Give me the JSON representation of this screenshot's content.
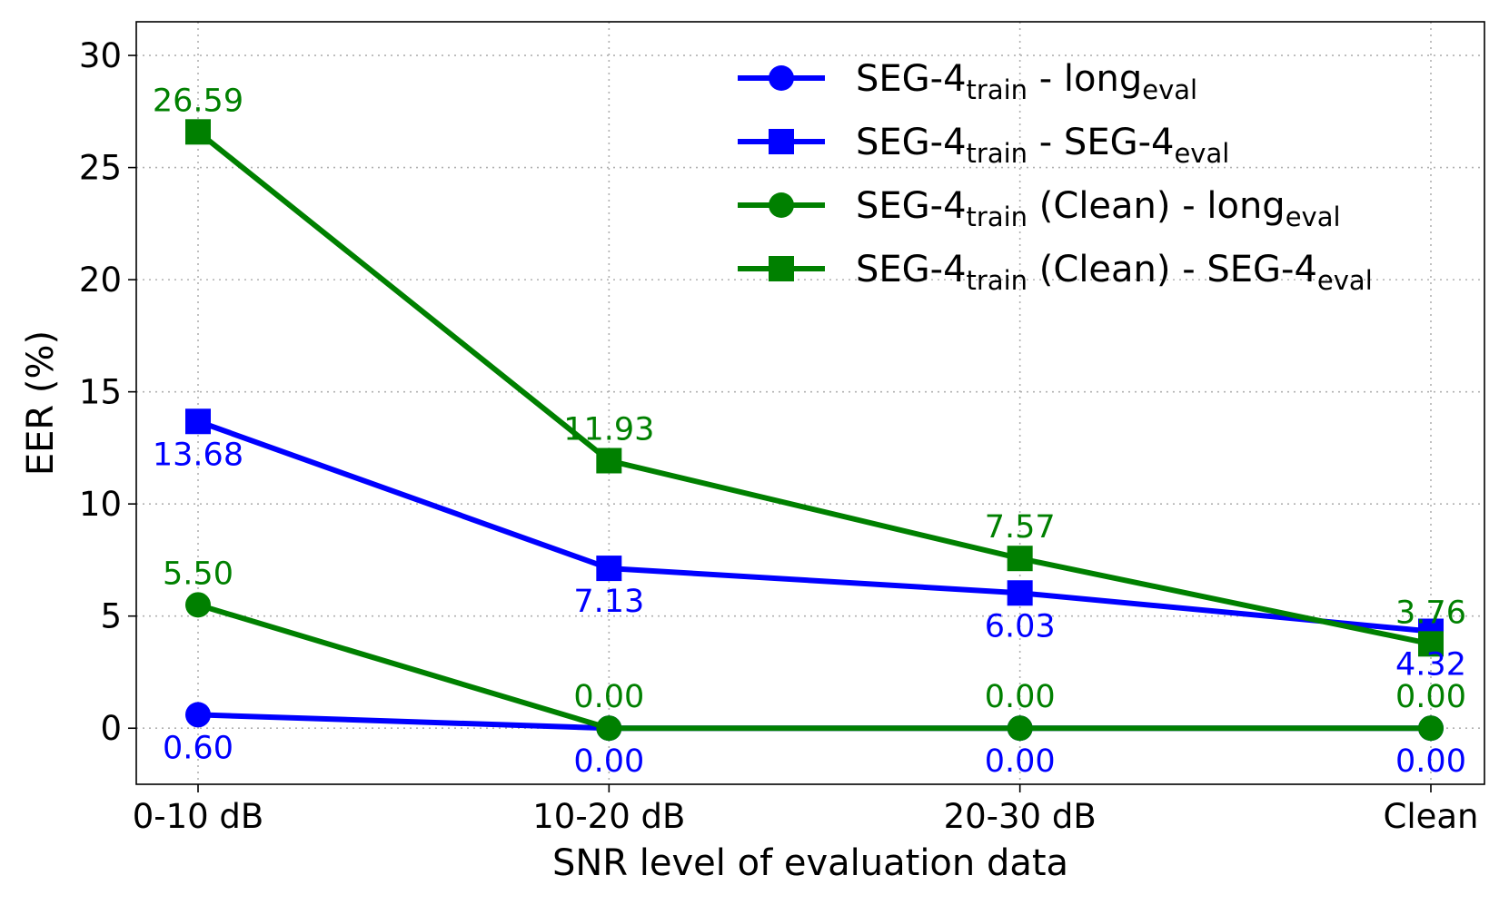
{
  "chart_data": {
    "type": "line",
    "title": "",
    "xlabel": "SNR level of evaluation data",
    "ylabel": "EER (%)",
    "categories": [
      "0-10 dB",
      "10-20 dB",
      "20-30 dB",
      "Clean"
    ],
    "ylim": [
      -2.5,
      31.5
    ],
    "yticks": [
      0,
      5,
      10,
      15,
      20,
      25,
      30
    ],
    "grid": true,
    "legend_position": "top-right",
    "series": [
      {
        "name": "SEG-4train - longeval",
        "legend_parts": [
          [
            "SEG-4",
            "normal"
          ],
          [
            "train",
            "sub"
          ],
          [
            " - long",
            "normal"
          ],
          [
            "eval",
            "sub"
          ]
        ],
        "color": "#0000ff",
        "marker": "circle",
        "values": [
          0.6,
          0.0,
          0.0,
          0.0
        ],
        "labels": [
          "0.60",
          "0.00",
          "0.00",
          "0.00"
        ],
        "label_position": "below"
      },
      {
        "name": "SEG-4train - SEG-4eval",
        "legend_parts": [
          [
            "SEG-4",
            "normal"
          ],
          [
            "train",
            "sub"
          ],
          [
            " - SEG-4",
            "normal"
          ],
          [
            "eval",
            "sub"
          ]
        ],
        "color": "#0000ff",
        "marker": "square",
        "values": [
          13.68,
          7.13,
          6.03,
          4.32
        ],
        "labels": [
          "13.68",
          "7.13",
          "6.03",
          "4.32"
        ],
        "label_position": "below"
      },
      {
        "name": "SEG-4train (Clean) - longeval",
        "legend_parts": [
          [
            "SEG-4",
            "normal"
          ],
          [
            "train",
            "sub"
          ],
          [
            " (Clean) - long",
            "normal"
          ],
          [
            "eval",
            "sub"
          ]
        ],
        "color": "#008000",
        "marker": "circle",
        "values": [
          5.5,
          0.0,
          0.0,
          0.0
        ],
        "labels": [
          "5.50",
          "0.00",
          "0.00",
          "0.00"
        ],
        "label_position": "above"
      },
      {
        "name": "SEG-4train (Clean) - SEG-4eval",
        "legend_parts": [
          [
            "SEG-4",
            "normal"
          ],
          [
            "train",
            "sub"
          ],
          [
            " (Clean) - SEG-4",
            "normal"
          ],
          [
            "eval",
            "sub"
          ]
        ],
        "color": "#008000",
        "marker": "square",
        "values": [
          26.59,
          11.93,
          7.57,
          3.76
        ],
        "labels": [
          "26.59",
          "11.93",
          "7.57",
          "3.76"
        ],
        "label_position": "above"
      }
    ]
  }
}
